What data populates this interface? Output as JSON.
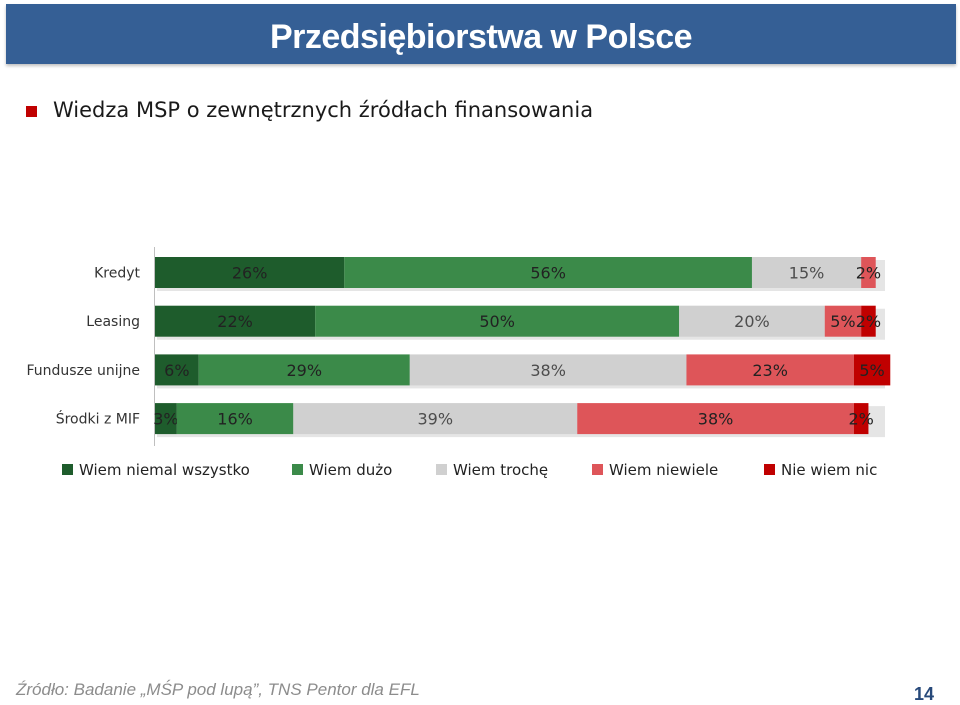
{
  "header": {
    "title": "Przedsiębiorstwa w Polsce"
  },
  "subtitle": "Wiedza MSP o zewnętrznych źródłach finansowania",
  "source": "Źródło: Badanie „MŚP pod lupą”, TNS Pentor dla EFL",
  "page_number": "14",
  "chart_data": {
    "type": "bar",
    "orientation": "horizontal",
    "stacked": true,
    "percent_stacked": true,
    "categories": [
      "Kredyt",
      "Leasing",
      "Fundusze unijne",
      "Środki z MIF"
    ],
    "series": [
      {
        "name": "Wiem niemal wszystko",
        "color": "#1e5c2c",
        "values": [
          26,
          22,
          6,
          3
        ]
      },
      {
        "name": "Wiem dużo",
        "color": "#3b8a49",
        "values": [
          56,
          50,
          29,
          16
        ]
      },
      {
        "name": "Wiem trochę",
        "color": "#d0d0d0",
        "values": [
          15,
          20,
          38,
          39
        ]
      },
      {
        "name": "Wiem niewiele",
        "color": "#de5559",
        "values": [
          2,
          5,
          23,
          38
        ]
      },
      {
        "name": "Nie wiem nic",
        "color": "#c00000",
        "values": [
          0,
          2,
          5,
          2
        ]
      }
    ],
    "legend_position": "bottom",
    "grid": false
  }
}
